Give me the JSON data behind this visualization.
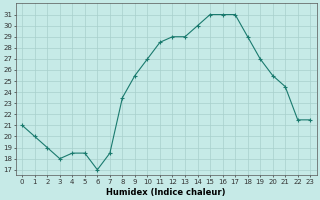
{
  "x": [
    0,
    1,
    2,
    3,
    4,
    5,
    6,
    7,
    8,
    9,
    10,
    11,
    12,
    13,
    14,
    15,
    16,
    17,
    18,
    19,
    20,
    21,
    22,
    23
  ],
  "y": [
    21,
    20,
    19,
    18,
    18.5,
    18.5,
    17,
    18.5,
    23.5,
    25.5,
    27,
    28.5,
    29,
    29,
    30,
    31,
    31,
    31,
    29,
    27,
    25.5,
    24.5,
    21.5,
    21.5
  ],
  "line_color": "#1a7a6e",
  "marker": "P",
  "marker_size": 2.5,
  "bg_color": "#c6eae7",
  "grid_color": "#a8d0cc",
  "xlabel": "Humidex (Indice chaleur)",
  "ylabel_ticks": [
    17,
    18,
    19,
    20,
    21,
    22,
    23,
    24,
    25,
    26,
    27,
    28,
    29,
    30,
    31
  ],
  "ylim": [
    16.5,
    32.0
  ],
  "xlim": [
    -0.5,
    23.5
  ],
  "tick_fontsize": 5.0,
  "xlabel_fontsize": 6.0
}
